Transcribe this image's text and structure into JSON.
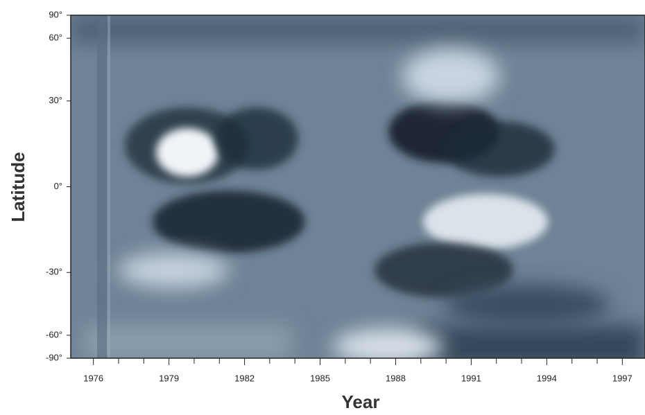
{
  "chart_data": {
    "type": "heatmap",
    "xlabel": "Year",
    "ylabel": "Latitude",
    "xlim": [
      1975.1,
      1997.9
    ],
    "xticks": [
      1976,
      1979,
      1982,
      1985,
      1988,
      1991,
      1994,
      1997
    ],
    "xminorticks": [
      1977,
      1978,
      1980,
      1981,
      1983,
      1984,
      1986,
      1987,
      1989,
      1990,
      1992,
      1993,
      1995,
      1996
    ],
    "ylim": [
      -90,
      90
    ],
    "yscale": "sine",
    "yticks": [
      {
        "value": 90,
        "label": "90°"
      },
      {
        "value": 60,
        "label": "60°"
      },
      {
        "value": 30,
        "label": "30°"
      },
      {
        "value": 0,
        "label": "0°"
      },
      {
        "value": -30,
        "label": "-30°"
      },
      {
        "value": -60,
        "label": "-60°"
      },
      {
        "value": -90,
        "label": "-90°"
      }
    ]
  }
}
